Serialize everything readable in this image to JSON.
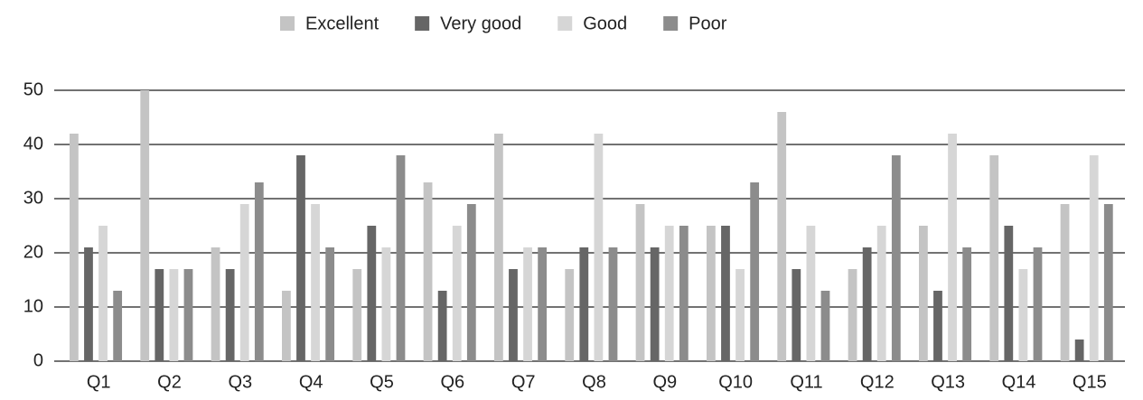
{
  "chart_data": {
    "type": "bar",
    "categories": [
      "Q1",
      "Q2",
      "Q3",
      "Q4",
      "Q5",
      "Q6",
      "Q7",
      "Q8",
      "Q9",
      "Q10",
      "Q11",
      "Q12",
      "Q13",
      "Q14",
      "Q15"
    ],
    "series": [
      {
        "name": "Excellent",
        "color": "#c4c4c4",
        "values": [
          42,
          50,
          21,
          13,
          17,
          33,
          42,
          17,
          29,
          25,
          46,
          17,
          25,
          38,
          29
        ]
      },
      {
        "name": "Very good",
        "color": "#666666",
        "values": [
          21,
          17,
          17,
          38,
          25,
          13,
          17,
          21,
          21,
          25,
          17,
          21,
          13,
          25,
          4
        ]
      },
      {
        "name": "Good",
        "color": "#d6d6d6",
        "values": [
          25,
          17,
          29,
          29,
          21,
          25,
          21,
          42,
          25,
          17,
          25,
          25,
          42,
          17,
          38
        ]
      },
      {
        "name": "Poor",
        "color": "#8c8c8c",
        "values": [
          13,
          17,
          33,
          21,
          38,
          29,
          21,
          21,
          25,
          33,
          13,
          38,
          21,
          21,
          29
        ]
      }
    ],
    "ylim": [
      0,
      50
    ],
    "yticks": [
      0,
      10,
      20,
      30,
      40,
      50
    ],
    "grid": true
  }
}
